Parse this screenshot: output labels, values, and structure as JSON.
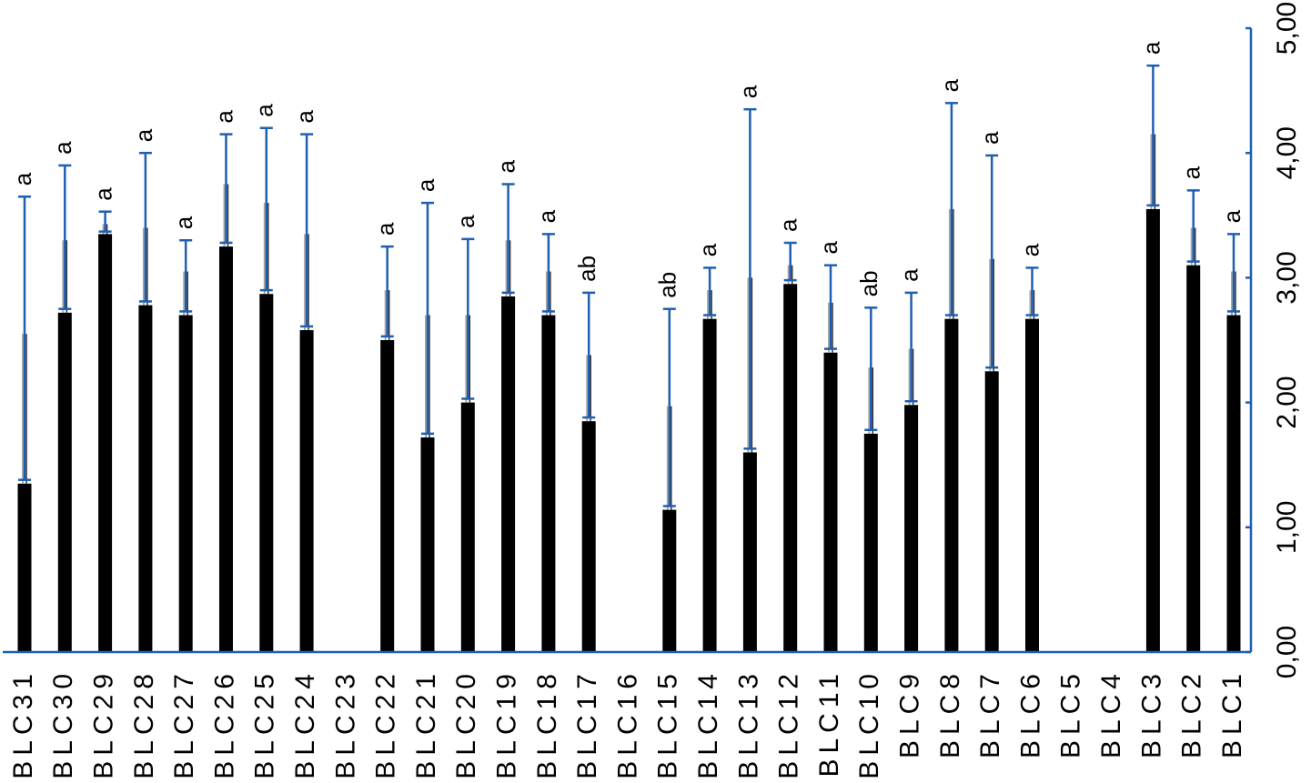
{
  "chart_data": {
    "type": "bar",
    "title": "",
    "xlabel": "",
    "ylabel": "",
    "ylim": [
      0,
      5
    ],
    "y_ticks": [
      "0,00",
      "1,00",
      "2,00",
      "3,00",
      "4,00",
      "5,00"
    ],
    "categories": [
      "BLC31",
      "BLC30",
      "BLC29",
      "BLC28",
      "BLC27",
      "BLC26",
      "BLC25",
      "BLC24",
      "BLC23",
      "BLC22",
      "BLC21",
      "BLC20",
      "BLC19",
      "BLC18",
      "BLC17",
      "BLC16",
      "BLC15",
      "BLC14",
      "BLC13",
      "BLC12",
      "BLC11",
      "BLC10",
      "BLC9",
      "BLC8",
      "BLC7",
      "BLC6",
      "BLC5",
      "BLC4",
      "BLC3",
      "BLC2",
      "BLC1"
    ],
    "values": [
      1.35,
      2.72,
      3.35,
      2.78,
      2.7,
      3.25,
      2.87,
      2.58,
      0.0,
      2.5,
      1.72,
      2.0,
      2.85,
      2.7,
      1.85,
      0.0,
      1.14,
      2.67,
      1.6,
      2.95,
      2.4,
      1.75,
      1.98,
      2.67,
      2.25,
      2.67,
      0.0,
      0.0,
      3.55,
      3.1,
      2.7
    ],
    "error_upper": [
      3.65,
      3.9,
      3.53,
      4.0,
      3.3,
      4.15,
      4.2,
      4.15,
      null,
      3.25,
      3.6,
      3.31,
      3.75,
      3.35,
      2.88,
      null,
      2.75,
      3.08,
      4.35,
      3.28,
      3.1,
      2.76,
      2.88,
      4.4,
      3.98,
      3.08,
      null,
      null,
      4.7,
      3.7,
      3.35
    ],
    "error_lower": [
      1.38,
      2.75,
      3.37,
      2.81,
      2.73,
      3.28,
      2.9,
      2.61,
      null,
      2.53,
      1.75,
      2.03,
      2.88,
      2.73,
      1.88,
      null,
      1.17,
      2.7,
      1.63,
      2.98,
      2.43,
      1.78,
      2.01,
      2.7,
      2.28,
      2.7,
      null,
      null,
      3.58,
      3.13,
      2.73
    ],
    "sd_upper": [
      2.55,
      3.3,
      3.43,
      3.4,
      3.05,
      3.75,
      3.6,
      3.35,
      null,
      2.9,
      2.7,
      2.7,
      3.3,
      3.05,
      2.38,
      null,
      1.97,
      2.9,
      3.0,
      3.1,
      2.8,
      2.28,
      2.43,
      3.55,
      3.15,
      2.9,
      null,
      null,
      4.15,
      3.4,
      3.05
    ],
    "significance_labels": [
      "a",
      "a",
      "a",
      "a",
      "a",
      "a",
      "a",
      "a",
      "",
      "a",
      "a",
      "a",
      "a",
      "a",
      "ab",
      "",
      "ab",
      "a",
      "a",
      "a",
      "a",
      "ab",
      "a",
      "a",
      "a",
      "a",
      "",
      "",
      "a",
      "a",
      "a"
    ],
    "colors": {
      "bar": "#000000",
      "error_bar": "#1f5fb0",
      "axis": "#1f5fb0",
      "sd_line": "#a8a8a8"
    },
    "grid": false,
    "y_axis_side": "right"
  }
}
